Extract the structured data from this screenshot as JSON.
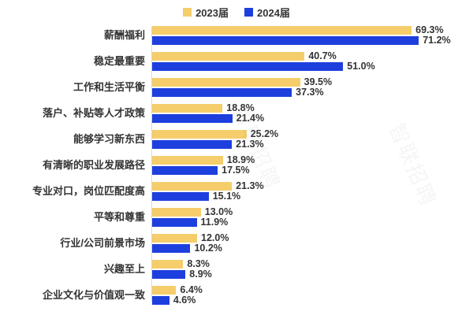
{
  "watermark": "智联招聘",
  "legend": [
    {
      "label": "2023届",
      "color": "#F5CD6B"
    },
    {
      "label": "2024届",
      "color": "#1C3FDE"
    }
  ],
  "chart_data": {
    "type": "bar",
    "orientation": "horizontal",
    "title": "",
    "xlabel": "",
    "ylabel": "",
    "grid": false,
    "legend_position": "top-center",
    "axis_line_color": "#D9D9D9",
    "label_color": "#333333",
    "value_suffix": "%",
    "xlim": [
      0,
      75
    ],
    "categories": [
      "薪酬福利",
      "稳定最重要",
      "工作和生活平衡",
      "落户、补贴等人才政策",
      "能够学习新东西",
      "有清晰的职业发展路径",
      "专业对口，岗位匹配度高",
      "平等和尊重",
      "行业/公司前景市场",
      "兴趣至上",
      "企业文化与价值观一致"
    ],
    "series": [
      {
        "name": "2023届",
        "color": "#F5CD6B",
        "values": [
          69.3,
          40.7,
          39.5,
          18.8,
          25.2,
          18.9,
          21.3,
          13.0,
          12.0,
          8.3,
          6.4
        ]
      },
      {
        "name": "2024届",
        "color": "#1C3FDE",
        "values": [
          71.2,
          51.0,
          37.3,
          21.4,
          21.3,
          17.5,
          15.1,
          11.9,
          10.2,
          8.9,
          4.6
        ]
      }
    ]
  }
}
